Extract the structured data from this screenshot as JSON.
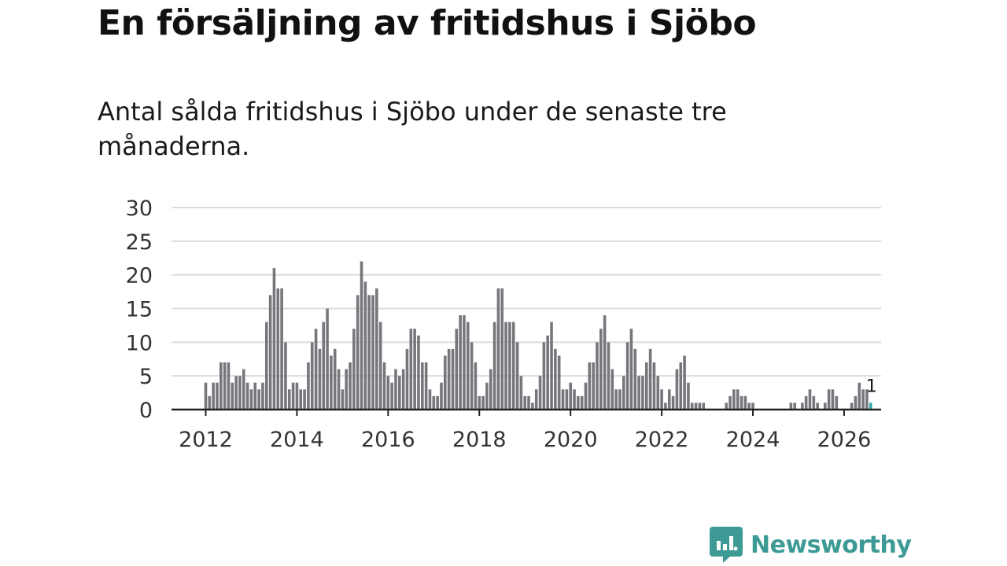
{
  "title": "En försäljning av fritidshus i Sjöbo",
  "subtitle": "Antal sålda fritidshus i Sjöbo under de senaste tre månaderna.",
  "brand": {
    "name": "Newsworthy",
    "color": "#3d9a95",
    "icon": "newsworthy-logo-icon"
  },
  "colors": {
    "bar": "#77767c",
    "highlight": "#2aa7a5",
    "grid": "#dcdcdc",
    "axis": "#222222"
  },
  "chart_data": {
    "type": "bar",
    "title": "",
    "xlabel": "",
    "ylabel": "",
    "ylim": [
      0,
      30
    ],
    "yticks": [
      "0",
      "5",
      "10",
      "15",
      "20",
      "25",
      "30"
    ],
    "xticks": [
      "2012",
      "2014",
      "2016",
      "2018",
      "2020",
      "2022",
      "2024",
      "2026"
    ],
    "grid": true,
    "start": "2012-01",
    "frequency": "monthly",
    "highlight_label": "1",
    "values": [
      4,
      2,
      4,
      4,
      7,
      7,
      7,
      4,
      5,
      5,
      6,
      4,
      3,
      4,
      3,
      4,
      13,
      17,
      21,
      18,
      18,
      10,
      3,
      4,
      4,
      3,
      3,
      7,
      10,
      12,
      9,
      13,
      15,
      8,
      9,
      6,
      3,
      6,
      7,
      12,
      17,
      22,
      19,
      17,
      17,
      18,
      13,
      7,
      5,
      4,
      6,
      5,
      6,
      9,
      12,
      12,
      11,
      7,
      7,
      3,
      2,
      2,
      4,
      8,
      9,
      9,
      12,
      14,
      14,
      13,
      10,
      7,
      2,
      2,
      4,
      6,
      13,
      18,
      18,
      13,
      13,
      13,
      10,
      5,
      2,
      2,
      1,
      3,
      5,
      10,
      11,
      13,
      9,
      8,
      3,
      3,
      4,
      3,
      2,
      2,
      4,
      7,
      7,
      10,
      12,
      14,
      10,
      6,
      3,
      3,
      5,
      10,
      12,
      9,
      5,
      5,
      7,
      9,
      7,
      5,
      3,
      1,
      3,
      2,
      6,
      7,
      8,
      4,
      1,
      1,
      1,
      1,
      0,
      0,
      0,
      0,
      0,
      1,
      2,
      3,
      3,
      2,
      2,
      1,
      1,
      0,
      0,
      0,
      0,
      0,
      0,
      0,
      0,
      0,
      1,
      1,
      0,
      1,
      2,
      3,
      2,
      1,
      0,
      1,
      3,
      3,
      2,
      0,
      0,
      0,
      1,
      2,
      4,
      3,
      3,
      1
    ]
  }
}
